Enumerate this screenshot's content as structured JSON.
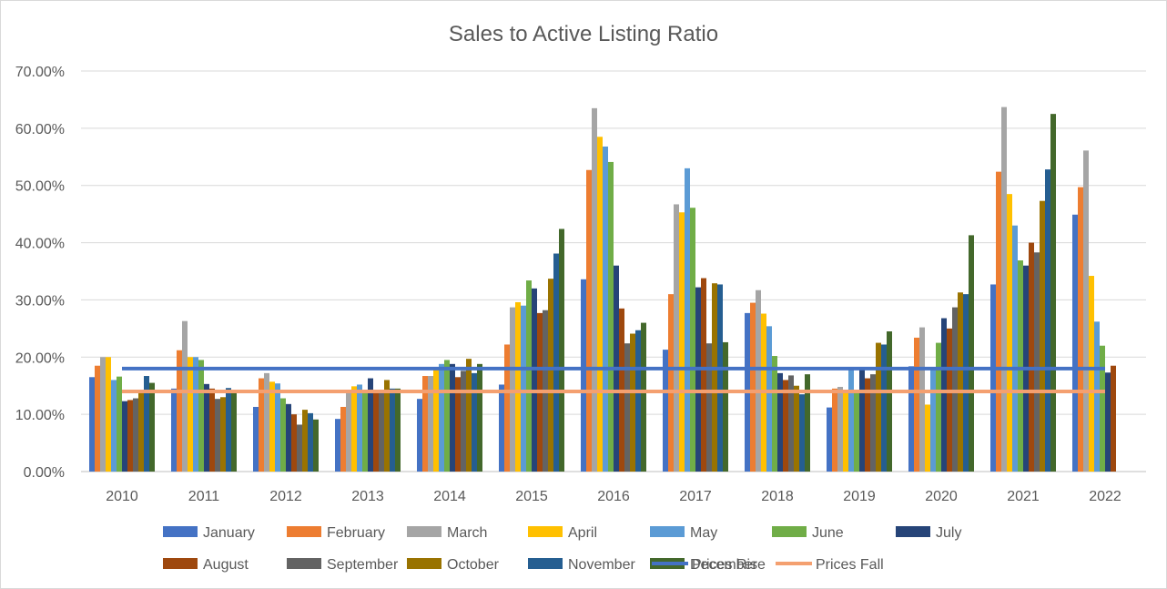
{
  "chart_data": {
    "type": "bar",
    "title": "Sales to Active Listing Ratio",
    "xlabel": "",
    "ylabel": "",
    "ylim": [
      0,
      0.7
    ],
    "yticks": [
      "0.00%",
      "10.00%",
      "20.00%",
      "30.00%",
      "40.00%",
      "50.00%",
      "60.00%",
      "70.00%"
    ],
    "categories": [
      "2010",
      "2011",
      "2012",
      "2013",
      "2014",
      "2015",
      "2016",
      "2017",
      "2018",
      "2019",
      "2020",
      "2021",
      "2022"
    ],
    "grid": true,
    "legend_position": "bottom",
    "series": [
      {
        "name": "January",
        "color": "#4472C4",
        "values": [
          0.165,
          0.145,
          0.113,
          0.092,
          0.127,
          0.152,
          0.336,
          0.213,
          0.277,
          0.112,
          0.184,
          0.327,
          0.449
        ]
      },
      {
        "name": "February",
        "color": "#ED7D31",
        "values": [
          0.185,
          0.212,
          0.163,
          0.113,
          0.167,
          0.222,
          0.527,
          0.31,
          0.295,
          0.145,
          0.234,
          0.524,
          0.497
        ]
      },
      {
        "name": "March",
        "color": "#A5A5A5",
        "values": [
          0.2,
          0.263,
          0.172,
          0.143,
          0.167,
          0.287,
          0.635,
          0.467,
          0.317,
          0.148,
          0.252,
          0.637,
          0.561
        ]
      },
      {
        "name": "April",
        "color": "#FFC000",
        "values": [
          0.2,
          0.2,
          0.157,
          0.149,
          0.18,
          0.296,
          0.585,
          0.453,
          0.276,
          0.143,
          0.117,
          0.485,
          0.342
        ]
      },
      {
        "name": "May",
        "color": "#5B9BD5",
        "values": [
          0.16,
          0.2,
          0.154,
          0.152,
          0.188,
          0.29,
          0.568,
          0.53,
          0.254,
          0.18,
          0.18,
          0.43,
          0.262
        ]
      },
      {
        "name": "June",
        "color": "#70AD47",
        "values": [
          0.166,
          0.195,
          0.128,
          0.143,
          0.195,
          0.334,
          0.541,
          0.461,
          0.202,
          0.143,
          0.225,
          0.369,
          0.22
        ]
      },
      {
        "name": "July",
        "color": "#264478",
        "values": [
          0.123,
          0.153,
          0.118,
          0.163,
          0.188,
          0.32,
          0.36,
          0.322,
          0.172,
          0.178,
          0.268,
          0.36,
          0.173
        ]
      },
      {
        "name": "August",
        "color": "#9E480E",
        "values": [
          0.125,
          0.145,
          0.1,
          0.143,
          0.165,
          0.277,
          0.285,
          0.338,
          0.16,
          0.163,
          0.25,
          0.4,
          0.185
        ]
      },
      {
        "name": "September",
        "color": "#636363",
        "values": [
          0.128,
          0.127,
          0.082,
          0.143,
          0.176,
          0.282,
          0.224,
          0.224,
          0.168,
          0.17,
          0.287,
          0.383,
          null
        ]
      },
      {
        "name": "October",
        "color": "#997300",
        "values": [
          0.14,
          0.13,
          0.108,
          0.16,
          0.197,
          0.337,
          0.241,
          0.329,
          0.15,
          0.225,
          0.313,
          0.473,
          null
        ]
      },
      {
        "name": "November",
        "color": "#255E91",
        "values": [
          0.167,
          0.146,
          0.102,
          0.145,
          0.172,
          0.381,
          0.247,
          0.327,
          0.135,
          0.222,
          0.31,
          0.528,
          null
        ]
      },
      {
        "name": "December",
        "color": "#43682B",
        "values": [
          0.155,
          0.14,
          0.091,
          0.145,
          0.188,
          0.424,
          0.26,
          0.226,
          0.17,
          0.245,
          0.413,
          0.625,
          null
        ]
      }
    ],
    "reference_lines": [
      {
        "name": "Prices Rise",
        "color": "#4472C4",
        "value": 0.18
      },
      {
        "name": "Prices Fall",
        "color": "#F4A070",
        "value": 0.14
      }
    ]
  }
}
